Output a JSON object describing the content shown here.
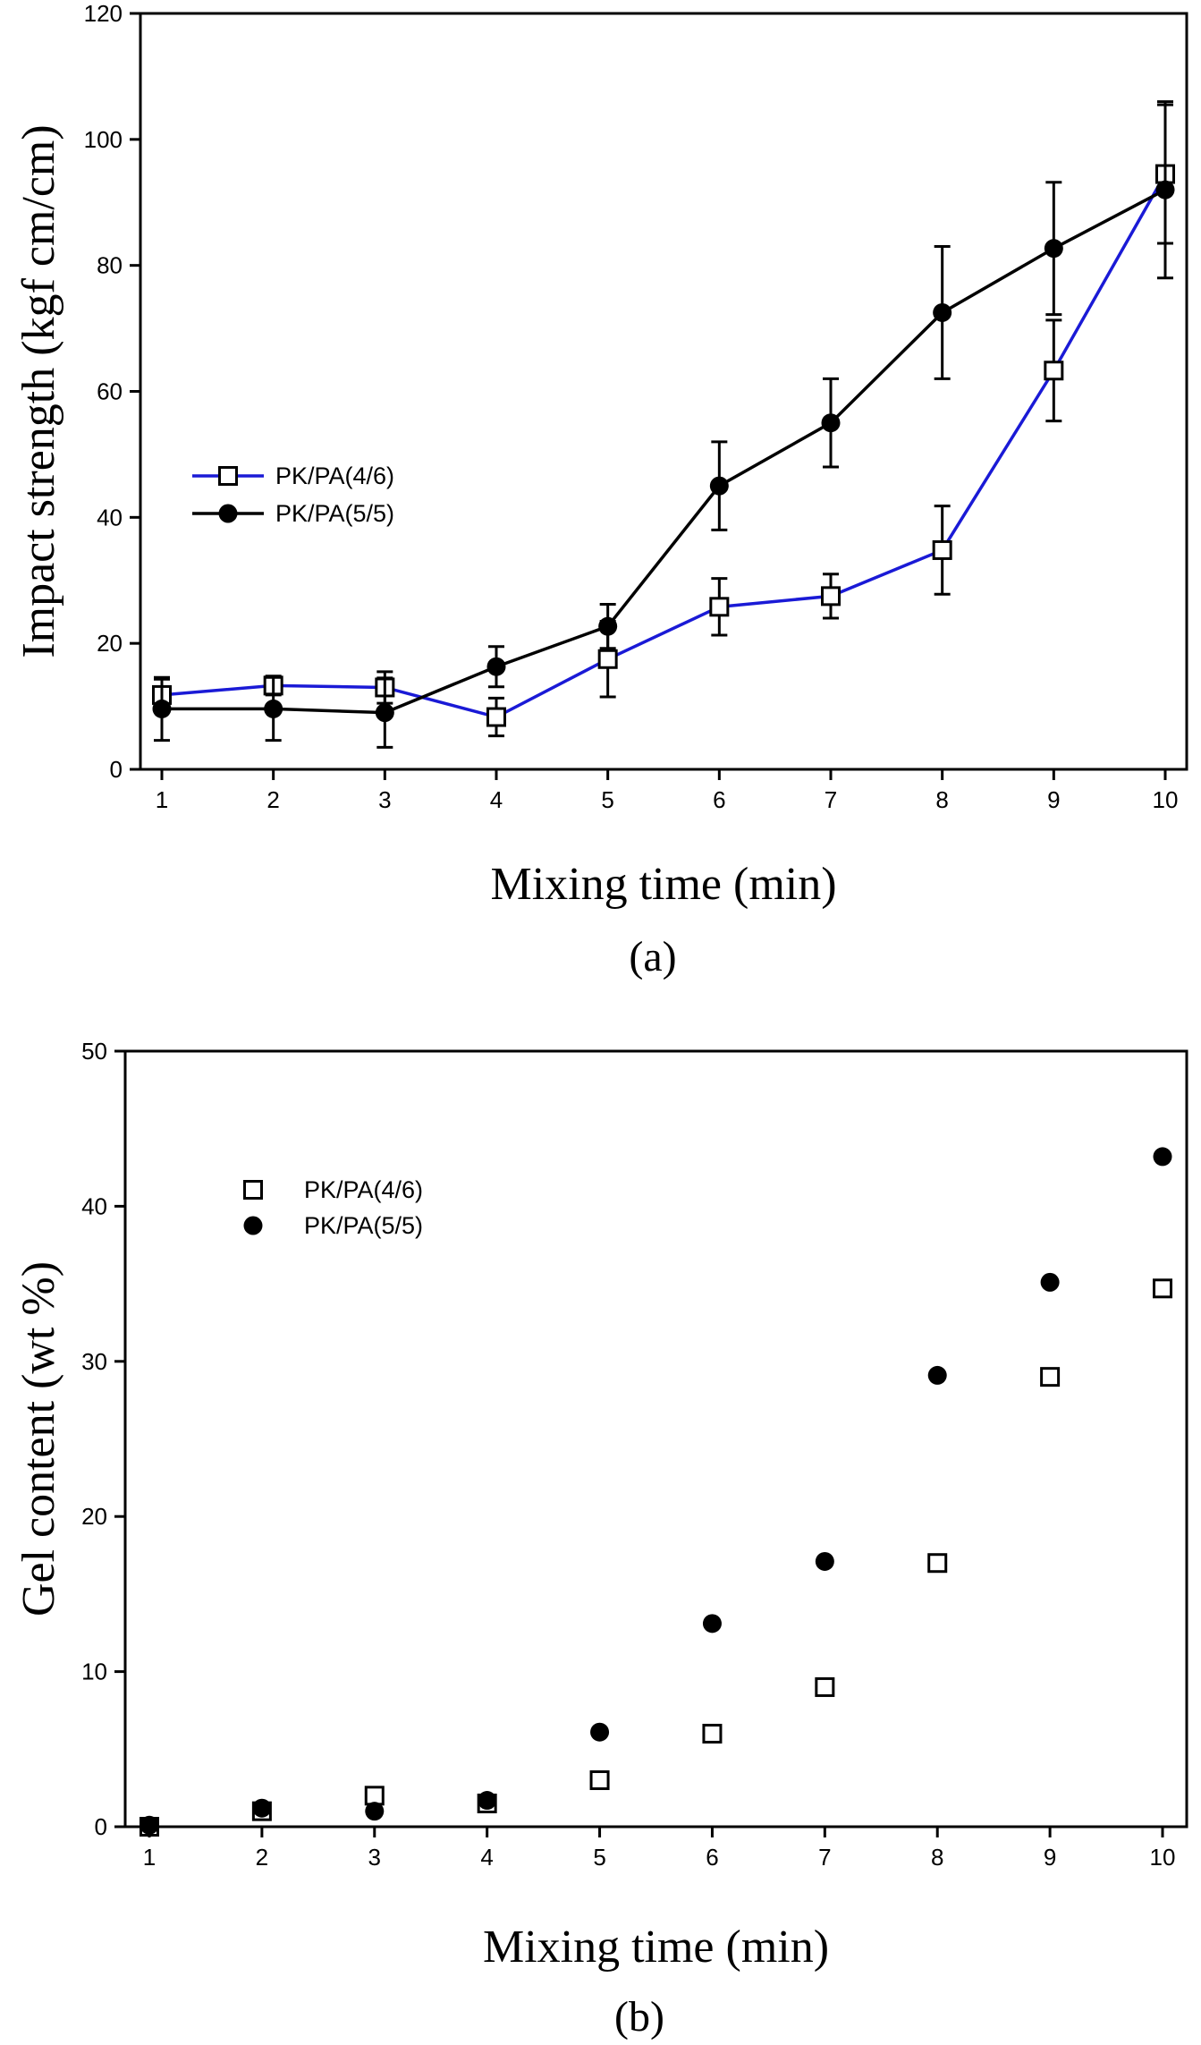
{
  "chart_data": [
    {
      "panel_label": "(a)",
      "type": "line",
      "xlabel": "Mixing time (min)",
      "ylabel": "Impact strength (kgf cm/cm)",
      "xlim": [
        1,
        10
      ],
      "ylim": [
        0,
        120
      ],
      "x_ticks": [
        1,
        2,
        3,
        4,
        5,
        6,
        7,
        8,
        9,
        10
      ],
      "y_ticks": [
        0,
        20,
        40,
        60,
        80,
        100,
        120
      ],
      "legend_position": "center-left",
      "error_bars": true,
      "x": [
        1,
        2,
        3,
        4,
        5,
        6,
        7,
        8,
        9,
        10
      ],
      "series": [
        {
          "name": "PK/PA(4/6)",
          "marker": "open-square",
          "color": "#1a1ad6",
          "values": [
            11.8,
            13.3,
            13.0,
            8.3,
            17.5,
            25.8,
            27.5,
            34.8,
            63.3,
            94.5
          ],
          "errors": [
            2.5,
            1.5,
            2.5,
            3.0,
            6.0,
            4.5,
            3.5,
            7.0,
            8.0,
            11.0
          ]
        },
        {
          "name": "PK/PA(5/5)",
          "marker": "filled-circle",
          "color": "#000000",
          "values": [
            9.6,
            9.6,
            9.0,
            16.3,
            22.7,
            45.0,
            55.0,
            72.5,
            82.7,
            92.0
          ],
          "errors": [
            5.0,
            5.0,
            5.5,
            3.2,
            3.5,
            7.0,
            7.0,
            10.5,
            10.5,
            14.0
          ]
        }
      ]
    },
    {
      "panel_label": "(b)",
      "type": "scatter",
      "xlabel": "Mixing time (min)",
      "ylabel": "Gel content (wt %)",
      "xlim": [
        1,
        10
      ],
      "ylim": [
        0,
        50
      ],
      "x_ticks": [
        1,
        2,
        3,
        4,
        5,
        6,
        7,
        8,
        9,
        10
      ],
      "y_ticks": [
        0,
        10,
        20,
        30,
        40,
        50
      ],
      "legend_position": "upper-left",
      "x": [
        1,
        2,
        3,
        4,
        5,
        6,
        7,
        8,
        9,
        10
      ],
      "series": [
        {
          "name": "PK/PA(4/6)",
          "marker": "open-square",
          "color": "#000000",
          "values": [
            0.0,
            1.0,
            2.0,
            1.5,
            3.0,
            6.0,
            9.0,
            17.0,
            29.0,
            34.7
          ]
        },
        {
          "name": "PK/PA(5/5)",
          "marker": "filled-circle",
          "color": "#000000",
          "values": [
            0.1,
            1.2,
            1.0,
            1.7,
            6.1,
            13.1,
            17.1,
            29.1,
            35.1,
            43.2
          ]
        }
      ]
    }
  ]
}
